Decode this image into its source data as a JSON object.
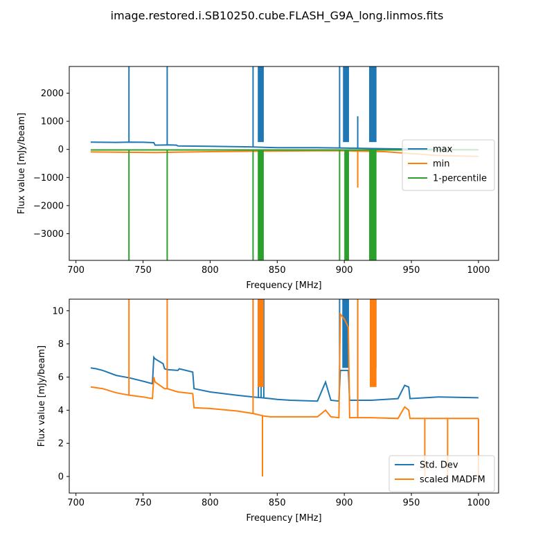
{
  "figure": {
    "title": "image.restored.i.SB10250.cube.FLASH_G9A_long.linmos.fits"
  },
  "colors": {
    "blue": "#1f77b4",
    "orange": "#ff7f0e",
    "green": "#2ca02c"
  },
  "chart_data": [
    {
      "type": "line",
      "xlabel": "Frequency [MHz]",
      "ylabel": "Flux value [mJy/beam]",
      "xlim": [
        695,
        1015
      ],
      "ylim": [
        -3950,
        2950
      ],
      "xticks": [
        700,
        750,
        800,
        850,
        900,
        950,
        1000
      ],
      "yticks": [
        -3000,
        -2000,
        -1000,
        0,
        1000,
        2000
      ],
      "legend": "center-right",
      "series": [
        {
          "name": "max",
          "color": "#1f77b4",
          "x": [
            711,
            730,
            740,
            750,
            758,
            759,
            770,
            775,
            776,
            800,
            830,
            850,
            880,
            900,
            920,
            950,
            970,
            1000
          ],
          "y": [
            260,
            250,
            260,
            255,
            240,
            150,
            160,
            150,
            120,
            110,
            90,
            60,
            60,
            50,
            30,
            10,
            0,
            -10
          ],
          "spikes": [
            {
              "x": 739.5,
              "y": 2950
            },
            {
              "x": 768,
              "y": 2950
            },
            {
              "x": 832,
              "y": 2950
            },
            {
              "x": 896.5,
              "y": 2950
            },
            {
              "x": 910,
              "y": 1180
            }
          ],
          "bands": [
            {
              "x0": 835.5,
              "x1": 840,
              "y": 2950
            },
            {
              "x0": 899,
              "x1": 903.5,
              "y": 2950
            },
            {
              "x0": 918.5,
              "x1": 924,
              "y": 2950
            }
          ]
        },
        {
          "name": "min",
          "color": "#ff7f0e",
          "x": [
            711,
            730,
            760,
            800,
            850,
            880,
            900,
            930,
            950,
            970,
            1000
          ],
          "y": [
            -90,
            -100,
            -110,
            -80,
            -60,
            -50,
            -50,
            -80,
            -150,
            -220,
            -250
          ],
          "spikes": [
            {
              "x": 910,
              "y": -1360
            }
          ]
        },
        {
          "name": "1-percentile",
          "color": "#2ca02c",
          "x": [
            711,
            1000
          ],
          "y": [
            -20,
            -20
          ],
          "spikes": [
            {
              "x": 739.5,
              "y": -3950
            },
            {
              "x": 768,
              "y": -3950
            },
            {
              "x": 832,
              "y": -3950
            },
            {
              "x": 896.5,
              "y": -3950
            }
          ],
          "bands": [
            {
              "x0": 835.5,
              "x1": 840,
              "y": -3950
            },
            {
              "x0": 900,
              "x1": 903.5,
              "y": -3950
            },
            {
              "x0": 918.5,
              "x1": 924,
              "y": -3950
            }
          ]
        }
      ]
    },
    {
      "type": "line",
      "xlabel": "Frequency [MHz]",
      "ylabel": "Flux value [mJy/beam]",
      "xlim": [
        695,
        1015
      ],
      "ylim": [
        -1,
        10.7
      ],
      "xticks": [
        700,
        750,
        800,
        850,
        900,
        950,
        1000
      ],
      "yticks": [
        0,
        2,
        4,
        6,
        8,
        10
      ],
      "legend": "bottom-right",
      "series": [
        {
          "name": "Std. Dev",
          "color": "#1f77b4",
          "x": [
            711,
            715,
            720,
            730,
            740,
            750,
            757,
            758,
            759,
            765,
            766,
            768,
            776,
            777,
            787,
            788,
            800,
            820,
            832,
            845,
            850,
            860,
            880,
            886,
            890,
            896,
            897,
            903,
            904,
            920,
            940,
            945,
            948,
            949,
            960,
            970,
            1000
          ],
          "y": [
            6.55,
            6.5,
            6.4,
            6.1,
            5.95,
            5.75,
            5.6,
            7.2,
            7.1,
            6.8,
            6.5,
            6.45,
            6.4,
            6.5,
            6.3,
            5.3,
            5.1,
            4.9,
            4.8,
            4.7,
            4.65,
            4.6,
            4.55,
            5.7,
            4.6,
            4.55,
            6.4,
            6.4,
            4.6,
            4.6,
            4.7,
            5.5,
            5.4,
            4.7,
            4.75,
            4.8,
            4.75
          ],
          "spikes": [
            {
              "x": 832,
              "y": 10.7
            },
            {
              "x": 836,
              "y": 10.7
            },
            {
              "x": 838,
              "y": 10.7
            },
            {
              "x": 840,
              "y": 10.7
            },
            {
              "x": 896.5,
              "y": 10.7
            },
            {
              "x": 910,
              "y": 10.7
            }
          ],
          "bands": [
            {
              "x0": 898.5,
              "x1": 903.5,
              "y": 10.7
            },
            {
              "x0": 919,
              "x1": 924,
              "y": 10.7
            }
          ]
        },
        {
          "name": "scaled MADFM",
          "color": "#ff7f0e",
          "x": [
            711,
            720,
            730,
            740,
            750,
            757,
            758,
            759,
            766,
            768,
            776,
            787,
            788,
            800,
            820,
            832,
            840,
            845,
            860,
            880,
            886,
            890,
            896,
            897,
            900,
            903,
            904,
            920,
            940,
            945,
            948,
            949,
            1000
          ],
          "y": [
            5.4,
            5.3,
            5.05,
            4.9,
            4.8,
            4.7,
            6.0,
            5.7,
            5.3,
            5.3,
            5.1,
            5.0,
            4.15,
            4.1,
            3.95,
            3.8,
            3.65,
            3.6,
            3.6,
            3.6,
            4.0,
            3.6,
            3.55,
            9.8,
            9.5,
            9.0,
            3.55,
            3.55,
            3.5,
            4.2,
            4.0,
            3.5,
            3.5
          ],
          "spikes": [
            {
              "x": 739.5,
              "y": 10.7
            },
            {
              "x": 768,
              "y": 10.7
            },
            {
              "x": 832,
              "y": 10.7
            },
            {
              "x": 839,
              "y": 0.0
            },
            {
              "x": 910,
              "y": 10.7
            },
            {
              "x": 960,
              "y": 0.0
            },
            {
              "x": 977,
              "y": 0.0
            },
            {
              "x": 1000,
              "y": 0.0
            }
          ],
          "bands": [
            {
              "x0": 835.5,
              "x1": 840,
              "y": 10.7
            },
            {
              "x0": 919,
              "x1": 924,
              "y": 10.7
            }
          ]
        }
      ]
    }
  ]
}
